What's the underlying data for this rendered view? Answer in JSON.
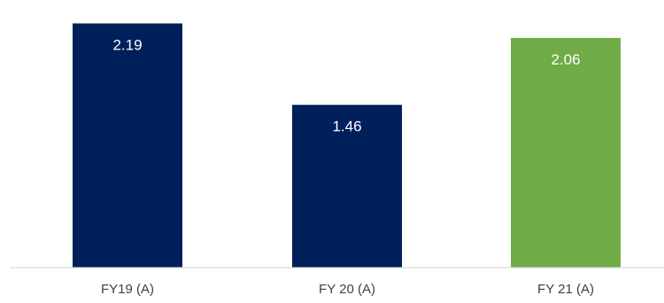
{
  "chart_data": {
    "type": "bar",
    "title": "",
    "xlabel": "",
    "ylabel": "",
    "categories": [
      "FY19 (A)",
      "FY 20 (A)",
      "FY 21 (A)"
    ],
    "values": [
      2.19,
      1.46,
      2.06
    ],
    "value_labels": [
      "2.19",
      "1.46",
      "2.06"
    ],
    "colors": [
      "#00205b",
      "#00205b",
      "#6fac46"
    ],
    "axis_color": "#d9d9d9",
    "ylim": [
      0,
      2.4
    ],
    "grid": false,
    "legend": "none"
  }
}
